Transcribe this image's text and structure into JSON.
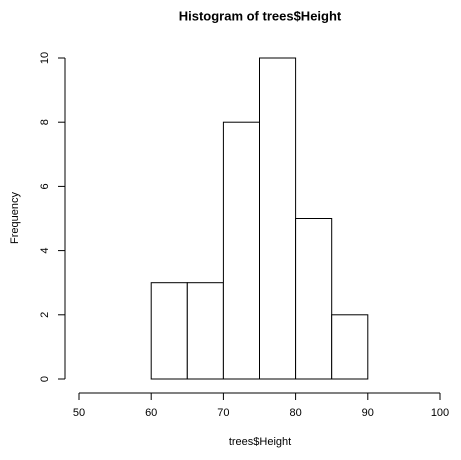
{
  "chart_data": {
    "type": "histogram",
    "title": "Histogram of trees$Height",
    "x_label": "trees$Height",
    "y_label": "Frequency",
    "bins": [
      60,
      65,
      70,
      75,
      80,
      85,
      90
    ],
    "values": [
      3,
      3,
      8,
      10,
      5,
      2
    ],
    "color": "#ffffff",
    "edge_color": "#000000",
    "xlim": [
      50,
      100
    ],
    "xticks": [
      50,
      60,
      70,
      80,
      90,
      100
    ],
    "ylim": [
      0,
      10
    ],
    "yticks": [
      0,
      2,
      4,
      6,
      8,
      10
    ],
    "grid": false
  }
}
